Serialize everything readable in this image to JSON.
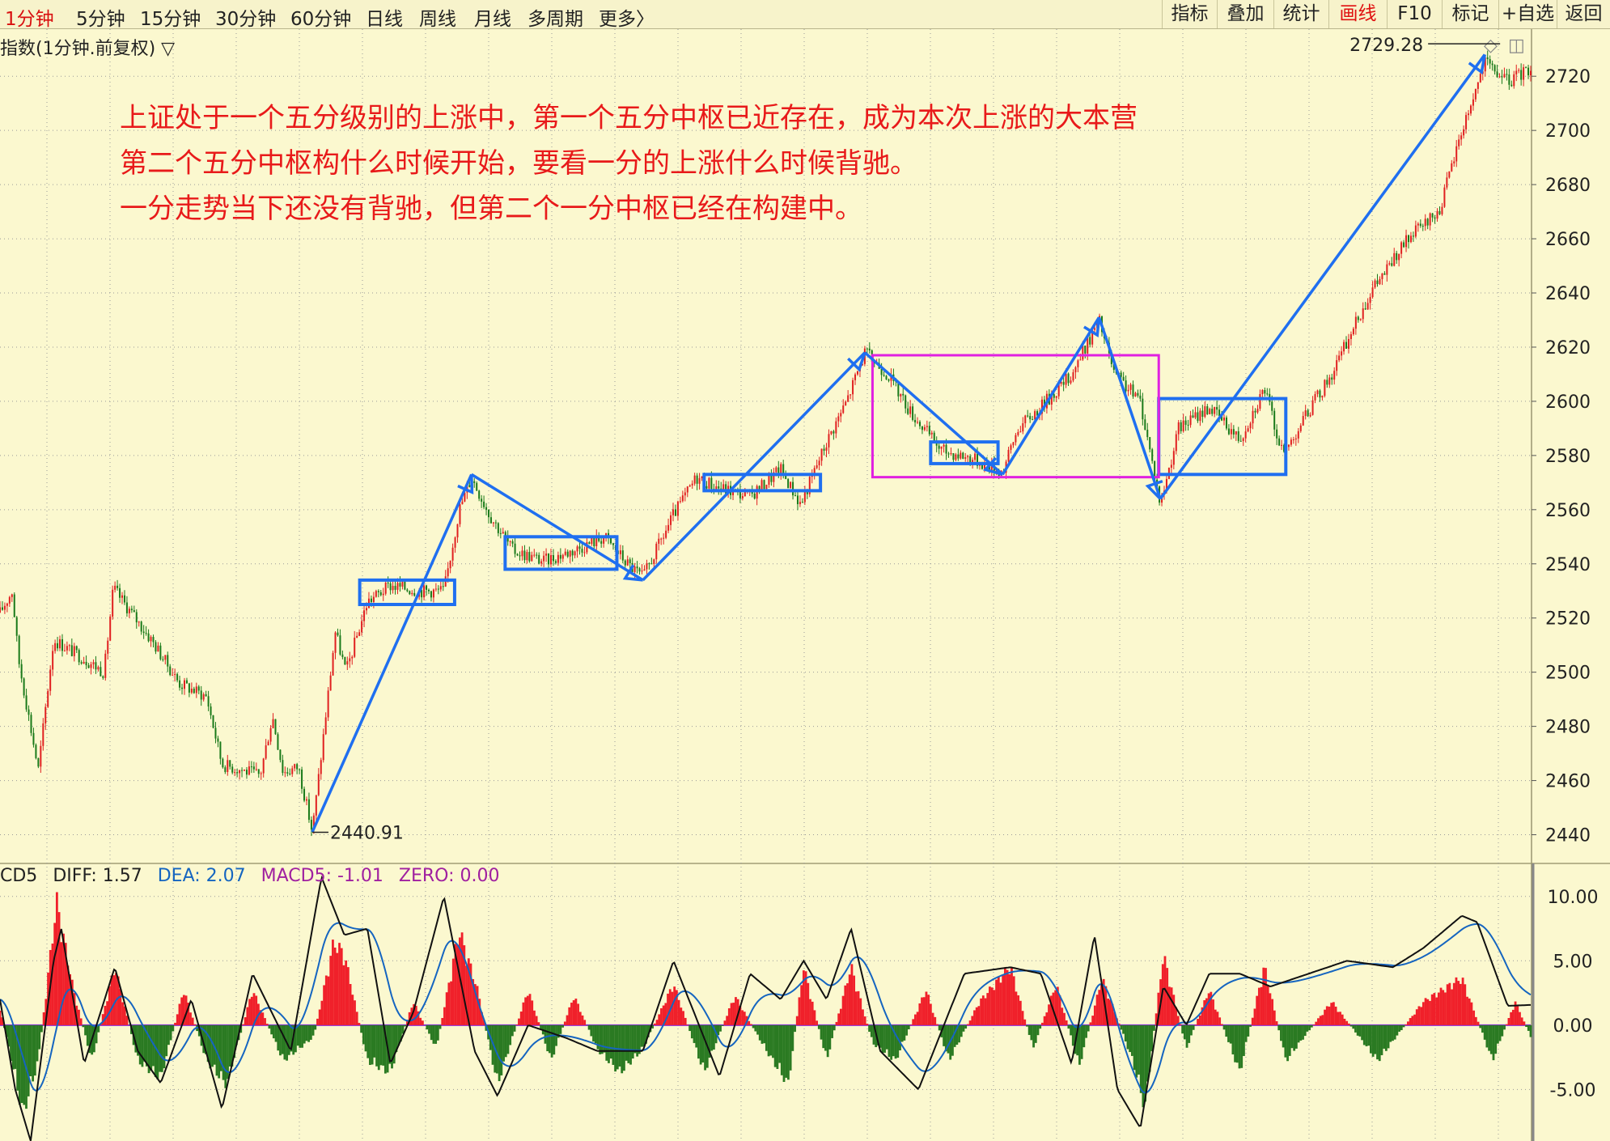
{
  "toolbar": {
    "timeframes": [
      {
        "label": "1分钟",
        "active": true
      },
      {
        "label": "5分钟",
        "active": false
      },
      {
        "label": "15分钟",
        "active": false
      },
      {
        "label": "30分钟",
        "active": false
      },
      {
        "label": "60分钟",
        "active": false
      },
      {
        "label": "日线",
        "active": false
      },
      {
        "label": "周线",
        "active": false
      },
      {
        "label": "月线",
        "active": false
      },
      {
        "label": "多周期",
        "active": false
      },
      {
        "label": "更多〉",
        "active": false
      }
    ],
    "tools": [
      {
        "label": "指标",
        "active": false
      },
      {
        "label": "叠加",
        "active": false
      },
      {
        "label": "统计",
        "active": false
      },
      {
        "label": "画线",
        "active": true
      },
      {
        "label": "F10",
        "active": false
      },
      {
        "label": "标记",
        "active": false
      },
      {
        "label": "+自选",
        "active": false
      },
      {
        "label": "返回",
        "active": false
      }
    ]
  },
  "main_chart": {
    "title": "指数(1分钟.前复权) ▽",
    "window_icons": [
      "diamond-icon",
      "split-icon"
    ]
  },
  "annotation": {
    "lines": [
      "上证处于一个五分级别的上涨中，第一个五分中枢已近存在，成为本次上涨的大本营",
      "第二个五分中枢构什么时候开始，要看一分的上涨什么时候背驰。",
      "一分走势当下还没有背驰，但第二个一分中枢已经在构建中。"
    ]
  },
  "macd": {
    "legend": [
      {
        "text": "CD5",
        "color": "#222222"
      },
      {
        "text": "DIFF: 1.57",
        "color": "#222222"
      },
      {
        "text": "DEA: 2.07",
        "color": "#1565c0"
      },
      {
        "text": "MACD5: -1.01",
        "color": "#a020a0"
      },
      {
        "text": "ZERO: 0.00",
        "color": "#a020a0"
      }
    ]
  },
  "colors": {
    "background": "#fbf8cf",
    "up_candle": "#e02020",
    "down_candle": "#1a7a1a",
    "annotation_text": "#e81a1a",
    "trend_lines": "#1f6ff0",
    "pivot_box": "#1f6ff0",
    "five_min_pivot_box": "#e020e0",
    "grid": "#9a9a9a"
  },
  "chart_data": [
    {
      "type": "candlestick",
      "title": "指数(1分钟.前复权)",
      "ylim": [
        2430,
        2735
      ],
      "yticks": [
        2440,
        2460,
        2480,
        2500,
        2520,
        2540,
        2560,
        2580,
        2600,
        2620,
        2640,
        2660,
        2680,
        2700,
        2720
      ],
      "grid": true,
      "price_path": [
        {
          "t": 0.0,
          "v": 2522
        },
        {
          "t": 0.008,
          "v": 2530
        },
        {
          "t": 0.012,
          "v": 2505
        },
        {
          "t": 0.025,
          "v": 2464
        },
        {
          "t": 0.035,
          "v": 2512
        },
        {
          "t": 0.055,
          "v": 2505
        },
        {
          "t": 0.068,
          "v": 2500
        },
        {
          "t": 0.074,
          "v": 2531
        },
        {
          "t": 0.1,
          "v": 2511
        },
        {
          "t": 0.117,
          "v": 2496
        },
        {
          "t": 0.135,
          "v": 2491
        },
        {
          "t": 0.145,
          "v": 2466
        },
        {
          "t": 0.17,
          "v": 2462
        },
        {
          "t": 0.178,
          "v": 2484
        },
        {
          "t": 0.185,
          "v": 2463
        },
        {
          "t": 0.195,
          "v": 2465
        },
        {
          "t": 0.204,
          "v": 2441
        },
        {
          "t": 0.212,
          "v": 2480
        },
        {
          "t": 0.219,
          "v": 2515
        },
        {
          "t": 0.226,
          "v": 2500
        },
        {
          "t": 0.24,
          "v": 2526
        },
        {
          "t": 0.255,
          "v": 2532
        },
        {
          "t": 0.275,
          "v": 2530
        },
        {
          "t": 0.29,
          "v": 2530
        },
        {
          "t": 0.3,
          "v": 2560
        },
        {
          "t": 0.308,
          "v": 2572
        },
        {
          "t": 0.32,
          "v": 2558
        },
        {
          "t": 0.335,
          "v": 2545
        },
        {
          "t": 0.355,
          "v": 2541
        },
        {
          "t": 0.375,
          "v": 2545
        },
        {
          "t": 0.395,
          "v": 2550
        },
        {
          "t": 0.41,
          "v": 2540
        },
        {
          "t": 0.42,
          "v": 2535
        },
        {
          "t": 0.44,
          "v": 2558
        },
        {
          "t": 0.455,
          "v": 2572
        },
        {
          "t": 0.47,
          "v": 2568
        },
        {
          "t": 0.49,
          "v": 2565
        },
        {
          "t": 0.51,
          "v": 2575
        },
        {
          "t": 0.523,
          "v": 2562
        },
        {
          "t": 0.54,
          "v": 2585
        },
        {
          "t": 0.553,
          "v": 2600
        },
        {
          "t": 0.565,
          "v": 2618
        },
        {
          "t": 0.58,
          "v": 2610
        },
        {
          "t": 0.595,
          "v": 2596
        },
        {
          "t": 0.615,
          "v": 2582
        },
        {
          "t": 0.635,
          "v": 2579
        },
        {
          "t": 0.655,
          "v": 2574
        },
        {
          "t": 0.665,
          "v": 2590
        },
        {
          "t": 0.68,
          "v": 2598
        },
        {
          "t": 0.7,
          "v": 2610
        },
        {
          "t": 0.718,
          "v": 2630
        },
        {
          "t": 0.728,
          "v": 2610
        },
        {
          "t": 0.745,
          "v": 2600
        },
        {
          "t": 0.758,
          "v": 2562
        },
        {
          "t": 0.77,
          "v": 2590
        },
        {
          "t": 0.79,
          "v": 2598
        },
        {
          "t": 0.81,
          "v": 2586
        },
        {
          "t": 0.826,
          "v": 2605
        },
        {
          "t": 0.838,
          "v": 2580
        },
        {
          "t": 0.85,
          "v": 2592
        },
        {
          "t": 0.87,
          "v": 2610
        },
        {
          "t": 0.895,
          "v": 2640
        },
        {
          "t": 0.92,
          "v": 2660
        },
        {
          "t": 0.94,
          "v": 2670
        },
        {
          "t": 0.955,
          "v": 2700
        },
        {
          "t": 0.97,
          "v": 2725
        },
        {
          "t": 0.985,
          "v": 2718
        },
        {
          "t": 1.0,
          "v": 2723
        }
      ],
      "annotations": [
        {
          "text": "2440.91",
          "x": 0.204,
          "y": 2440.91
        },
        {
          "text": "2729.28",
          "x": 0.98,
          "y": 2729.28
        }
      ],
      "trend_lines": [
        {
          "from": {
            "t": 0.204,
            "v": 2441
          },
          "to": {
            "t": 0.308,
            "v": 2573
          }
        },
        {
          "from": {
            "t": 0.308,
            "v": 2573
          },
          "to": {
            "t": 0.42,
            "v": 2534
          }
        },
        {
          "from": {
            "t": 0.42,
            "v": 2534
          },
          "to": {
            "t": 0.565,
            "v": 2618
          }
        },
        {
          "from": {
            "t": 0.565,
            "v": 2618
          },
          "to": {
            "t": 0.655,
            "v": 2573
          }
        },
        {
          "from": {
            "t": 0.655,
            "v": 2573
          },
          "to": {
            "t": 0.718,
            "v": 2631
          }
        },
        {
          "from": {
            "t": 0.718,
            "v": 2631
          },
          "to": {
            "t": 0.758,
            "v": 2564
          }
        },
        {
          "from": {
            "t": 0.758,
            "v": 2564
          },
          "to": {
            "t": 0.97,
            "v": 2728
          }
        }
      ],
      "pivot_boxes": [
        {
          "kind": "1min",
          "t0": 0.235,
          "t1": 0.297,
          "v_low": 2525,
          "v_high": 2534
        },
        {
          "kind": "1min",
          "t0": 0.33,
          "t1": 0.403,
          "v_low": 2538,
          "v_high": 2550
        },
        {
          "kind": "1min",
          "t0": 0.46,
          "t1": 0.536,
          "v_low": 2567,
          "v_high": 2573
        },
        {
          "kind": "1min",
          "t0": 0.608,
          "t1": 0.652,
          "v_low": 2577,
          "v_high": 2585
        },
        {
          "kind": "1min",
          "t0": 0.757,
          "t1": 0.84,
          "v_low": 2573,
          "v_high": 2601
        },
        {
          "kind": "5min",
          "t0": 0.57,
          "t1": 0.757,
          "v_low": 2572,
          "v_high": 2617
        }
      ]
    },
    {
      "type": "bar+line",
      "title": "MACD5",
      "ylim": [
        -9,
        12.5
      ],
      "yticks": [
        10,
        5,
        0,
        -5
      ],
      "series": [
        {
          "name": "DIFF",
          "color": "#111111"
        },
        {
          "name": "DEA",
          "color": "#1565c0"
        },
        {
          "name": "MACD5",
          "type": "histogram"
        }
      ],
      "histogram_path": [
        {
          "t": 0.0,
          "v": 1.5
        },
        {
          "t": 0.015,
          "v": -7.5
        },
        {
          "t": 0.025,
          "v": -3
        },
        {
          "t": 0.037,
          "v": 10.5
        },
        {
          "t": 0.048,
          "v": 3
        },
        {
          "t": 0.06,
          "v": -3
        },
        {
          "t": 0.075,
          "v": 5
        },
        {
          "t": 0.09,
          "v": -3
        },
        {
          "t": 0.105,
          "v": -4.5
        },
        {
          "t": 0.12,
          "v": 3
        },
        {
          "t": 0.135,
          "v": -3
        },
        {
          "t": 0.148,
          "v": -5
        },
        {
          "t": 0.165,
          "v": 3
        },
        {
          "t": 0.185,
          "v": -3
        },
        {
          "t": 0.205,
          "v": -1
        },
        {
          "t": 0.218,
          "v": 7
        },
        {
          "t": 0.225,
          "v": 6
        },
        {
          "t": 0.24,
          "v": -3
        },
        {
          "t": 0.255,
          "v": -4
        },
        {
          "t": 0.27,
          "v": 2
        },
        {
          "t": 0.285,
          "v": -2
        },
        {
          "t": 0.3,
          "v": 8
        },
        {
          "t": 0.312,
          "v": 3
        },
        {
          "t": 0.325,
          "v": -5
        },
        {
          "t": 0.345,
          "v": 3
        },
        {
          "t": 0.36,
          "v": -3
        },
        {
          "t": 0.375,
          "v": 2.5
        },
        {
          "t": 0.39,
          "v": -2
        },
        {
          "t": 0.405,
          "v": -4
        },
        {
          "t": 0.42,
          "v": -2
        },
        {
          "t": 0.44,
          "v": 3.5
        },
        {
          "t": 0.46,
          "v": -4
        },
        {
          "t": 0.48,
          "v": 2.5
        },
        {
          "t": 0.5,
          "v": -2
        },
        {
          "t": 0.515,
          "v": -5
        },
        {
          "t": 0.525,
          "v": 5
        },
        {
          "t": 0.54,
          "v": -3
        },
        {
          "t": 0.556,
          "v": 5
        },
        {
          "t": 0.57,
          "v": -1.5
        },
        {
          "t": 0.585,
          "v": -3
        },
        {
          "t": 0.605,
          "v": 3
        },
        {
          "t": 0.62,
          "v": -3
        },
        {
          "t": 0.64,
          "v": 2
        },
        {
          "t": 0.66,
          "v": 5
        },
        {
          "t": 0.675,
          "v": -2
        },
        {
          "t": 0.69,
          "v": 3.5
        },
        {
          "t": 0.705,
          "v": -3.5
        },
        {
          "t": 0.72,
          "v": 4
        },
        {
          "t": 0.74,
          "v": -3
        },
        {
          "t": 0.748,
          "v": -7
        },
        {
          "t": 0.76,
          "v": 6
        },
        {
          "t": 0.775,
          "v": -2
        },
        {
          "t": 0.79,
          "v": 3
        },
        {
          "t": 0.81,
          "v": -4
        },
        {
          "t": 0.826,
          "v": 5
        },
        {
          "t": 0.84,
          "v": -3
        },
        {
          "t": 0.87,
          "v": 2
        },
        {
          "t": 0.9,
          "v": -3
        },
        {
          "t": 0.93,
          "v": 2
        },
        {
          "t": 0.955,
          "v": 4
        },
        {
          "t": 0.975,
          "v": -3
        },
        {
          "t": 0.99,
          "v": 2
        },
        {
          "t": 1.0,
          "v": -1
        }
      ],
      "diff_path": [
        {
          "t": 0.0,
          "v": 2
        },
        {
          "t": 0.01,
          "v": -5
        },
        {
          "t": 0.02,
          "v": -9
        },
        {
          "t": 0.035,
          "v": 5
        },
        {
          "t": 0.04,
          "v": 7.5
        },
        {
          "t": 0.055,
          "v": -3
        },
        {
          "t": 0.075,
          "v": 4.5
        },
        {
          "t": 0.09,
          "v": -2
        },
        {
          "t": 0.105,
          "v": -4.5
        },
        {
          "t": 0.125,
          "v": 2
        },
        {
          "t": 0.145,
          "v": -6.5
        },
        {
          "t": 0.165,
          "v": 4
        },
        {
          "t": 0.19,
          "v": -2
        },
        {
          "t": 0.21,
          "v": 11.5
        },
        {
          "t": 0.225,
          "v": 7
        },
        {
          "t": 0.24,
          "v": 7.5
        },
        {
          "t": 0.255,
          "v": -3
        },
        {
          "t": 0.27,
          "v": 1
        },
        {
          "t": 0.29,
          "v": 10
        },
        {
          "t": 0.31,
          "v": -2
        },
        {
          "t": 0.325,
          "v": -5.5
        },
        {
          "t": 0.345,
          "v": 0
        },
        {
          "t": 0.37,
          "v": -1
        },
        {
          "t": 0.39,
          "v": -2
        },
        {
          "t": 0.42,
          "v": -2
        },
        {
          "t": 0.44,
          "v": 5
        },
        {
          "t": 0.47,
          "v": -4
        },
        {
          "t": 0.49,
          "v": 4
        },
        {
          "t": 0.51,
          "v": 2
        },
        {
          "t": 0.525,
          "v": 5
        },
        {
          "t": 0.54,
          "v": 2
        },
        {
          "t": 0.556,
          "v": 7.5
        },
        {
          "t": 0.575,
          "v": -2
        },
        {
          "t": 0.6,
          "v": -5
        },
        {
          "t": 0.63,
          "v": 4
        },
        {
          "t": 0.66,
          "v": 4.5
        },
        {
          "t": 0.68,
          "v": 4
        },
        {
          "t": 0.7,
          "v": -3
        },
        {
          "t": 0.715,
          "v": 7
        },
        {
          "t": 0.73,
          "v": -5
        },
        {
          "t": 0.745,
          "v": -8
        },
        {
          "t": 0.76,
          "v": 3
        },
        {
          "t": 0.775,
          "v": 0
        },
        {
          "t": 0.79,
          "v": 4
        },
        {
          "t": 0.81,
          "v": 4
        },
        {
          "t": 0.83,
          "v": 3
        },
        {
          "t": 0.855,
          "v": 4
        },
        {
          "t": 0.88,
          "v": 5
        },
        {
          "t": 0.91,
          "v": 4.5
        },
        {
          "t": 0.93,
          "v": 6
        },
        {
          "t": 0.955,
          "v": 8.5
        },
        {
          "t": 0.965,
          "v": 8
        },
        {
          "t": 0.985,
          "v": 1.5
        },
        {
          "t": 1.0,
          "v": 1.57
        }
      ]
    }
  ]
}
